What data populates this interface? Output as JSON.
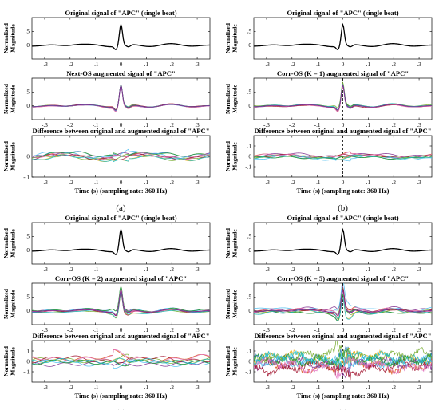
{
  "chart_data": [
    {
      "type": "line",
      "caption": "(a)",
      "xlabel": "Time (s) (sampling rate: 360 Hz)",
      "subplots": [
        {
          "title": "Original signal of \"APC\" (single beat)",
          "ylabel": [
            "Normalized",
            "Magnitude"
          ],
          "kind": "original",
          "ylim": [
            -0.5,
            1
          ],
          "yticks": [
            0,
            0.5
          ],
          "xlim": [
            -0.35,
            0.35
          ],
          "xticks": [
            -0.3,
            -0.2,
            -0.1,
            0,
            0.1,
            0.2,
            0.3
          ]
        },
        {
          "title": "Next-OS augmented signal of \"APC\"",
          "ylabel": [
            "Normalized",
            "Magnitude"
          ],
          "kind": "augmented",
          "spread": 0.02,
          "ylim": [
            -0.5,
            1
          ],
          "yticks": [
            0,
            0.5
          ],
          "xlim": [
            -0.35,
            0.35
          ],
          "xticks": [
            -0.3,
            -0.2,
            -0.1,
            0,
            0.1,
            0.2,
            0.3
          ]
        },
        {
          "title": "Difference between original and augmented signal of \"APC\"",
          "ylabel": [
            "Normalized",
            "Magnitude"
          ],
          "kind": "difference",
          "spread": 0.02,
          "ylim": [
            -0.1,
            0.1
          ],
          "yticks": [
            -0.1,
            0
          ],
          "xlim": [
            -0.35,
            0.35
          ],
          "xticks": [
            -0.3,
            -0.2,
            -0.1,
            0,
            0.1,
            0.2,
            0.3
          ]
        }
      ]
    },
    {
      "type": "line",
      "caption": "(b)",
      "xlabel": "Time (s) (sampling rate: 360 Hz)",
      "subplots": [
        {
          "title": "Original signal of \"APC\" (single beat)",
          "ylabel": [
            "Normalized",
            "Magnitude"
          ],
          "kind": "original",
          "ylim": [
            -0.5,
            1
          ],
          "yticks": [
            0,
            0.5
          ],
          "xlim": [
            -0.35,
            0.35
          ],
          "xticks": [
            -0.3,
            -0.2,
            -0.1,
            0,
            0.1,
            0.2,
            0.3
          ]
        },
        {
          "title": "Corr-OS (K = 1) augmented signal of \"APC\"",
          "ylabel": [
            "Normalized",
            "Magnitude"
          ],
          "kind": "augmented",
          "spread": 0.03,
          "ylim": [
            -0.5,
            1
          ],
          "yticks": [
            0,
            0.5
          ],
          "xlim": [
            -0.35,
            0.35
          ],
          "xticks": [
            -0.3,
            -0.2,
            -0.1,
            0,
            0.1,
            0.2,
            0.3
          ]
        },
        {
          "title": "Difference between original and augmented signal of \"APC\"",
          "ylabel": [
            "Normalized",
            "Magnitude"
          ],
          "kind": "difference",
          "spread": 0.03,
          "ylim": [
            -0.2,
            0.2
          ],
          "yticks": [
            -0.1,
            0,
            0.1
          ],
          "xlim": [
            -0.35,
            0.35
          ],
          "xticks": [
            -0.3,
            -0.2,
            -0.1,
            0,
            0.1,
            0.2,
            0.3
          ]
        }
      ]
    },
    {
      "type": "line",
      "caption": "(c)",
      "xlabel": "Time (s) (sampling rate: 360 Hz)",
      "subplots": [
        {
          "title": "Original signal of \"APC\" (single beat)",
          "ylabel": [
            "Normalized",
            "Magnitude"
          ],
          "kind": "original",
          "ylim": [
            -0.5,
            1
          ],
          "yticks": [
            0,
            0.5
          ],
          "xlim": [
            -0.35,
            0.35
          ],
          "xticks": [
            -0.3,
            -0.2,
            -0.1,
            0,
            0.1,
            0.2,
            0.3
          ]
        },
        {
          "title": "Corr-OS (K = 2) augmented signal of \"APC\"",
          "ylabel": [
            "Normalized",
            "Magnitude"
          ],
          "kind": "augmented",
          "spread": 0.06,
          "ylim": [
            -0.5,
            1
          ],
          "yticks": [
            0,
            0.5
          ],
          "xlim": [
            -0.35,
            0.35
          ],
          "xticks": [
            -0.3,
            -0.2,
            -0.1,
            0,
            0.1,
            0.2,
            0.3
          ]
        },
        {
          "title": "Difference between original and augmented signal of \"APC\"",
          "ylabel": [
            "Normalized",
            "Magnitude"
          ],
          "kind": "difference",
          "spread": 0.06,
          "ylim": [
            -0.2,
            0.2
          ],
          "yticks": [
            -0.1,
            0,
            0.1
          ],
          "xlim": [
            -0.35,
            0.35
          ],
          "xticks": [
            -0.3,
            -0.2,
            -0.1,
            0,
            0.1,
            0.2,
            0.3
          ]
        }
      ]
    },
    {
      "type": "line",
      "caption": "(d)",
      "xlabel": "Time (s) (sampling rate: 360 Hz)",
      "subplots": [
        {
          "title": "Original signal of \"APC\" (single beat)",
          "ylabel": [
            "Normalized",
            "Magnitude"
          ],
          "kind": "original",
          "ylim": [
            -0.5,
            1
          ],
          "yticks": [
            0,
            0.5
          ],
          "xlim": [
            -0.35,
            0.35
          ],
          "xticks": [
            -0.3,
            -0.2,
            -0.1,
            0,
            0.1,
            0.2,
            0.3
          ]
        },
        {
          "title": "Corr-OS (K = 5) augmented signal of \"APC\"",
          "ylabel": [
            "Normalized",
            "Magnitude"
          ],
          "kind": "augmented",
          "spread": 0.12,
          "ylim": [
            -0.5,
            1
          ],
          "yticks": [
            0,
            0.5
          ],
          "xlim": [
            -0.35,
            0.35
          ],
          "xticks": [
            -0.3,
            -0.2,
            -0.1,
            0,
            0.1,
            0.2,
            0.3
          ]
        },
        {
          "title": "Difference between original and augmented signal of \"APC\"",
          "ylabel": [
            "Normalized",
            "Magnitude"
          ],
          "kind": "difference",
          "spread": 0.12,
          "ylim": [
            -0.2,
            0.2
          ],
          "yticks": [
            -0.1,
            0,
            0.1
          ],
          "xlim": [
            -0.35,
            0.35
          ],
          "xticks": [
            -0.3,
            -0.2,
            -0.1,
            0,
            0.1,
            0.2,
            0.3
          ]
        }
      ]
    }
  ],
  "colors": {
    "original": "#000000",
    "zero_line": "#000000",
    "series": [
      "#1f77b4",
      "#d95319",
      "#edb120",
      "#7e2f8e",
      "#77ac30",
      "#4dbeee",
      "#a2142f",
      "#2ca02c",
      "#e377c2",
      "#17becf"
    ]
  }
}
